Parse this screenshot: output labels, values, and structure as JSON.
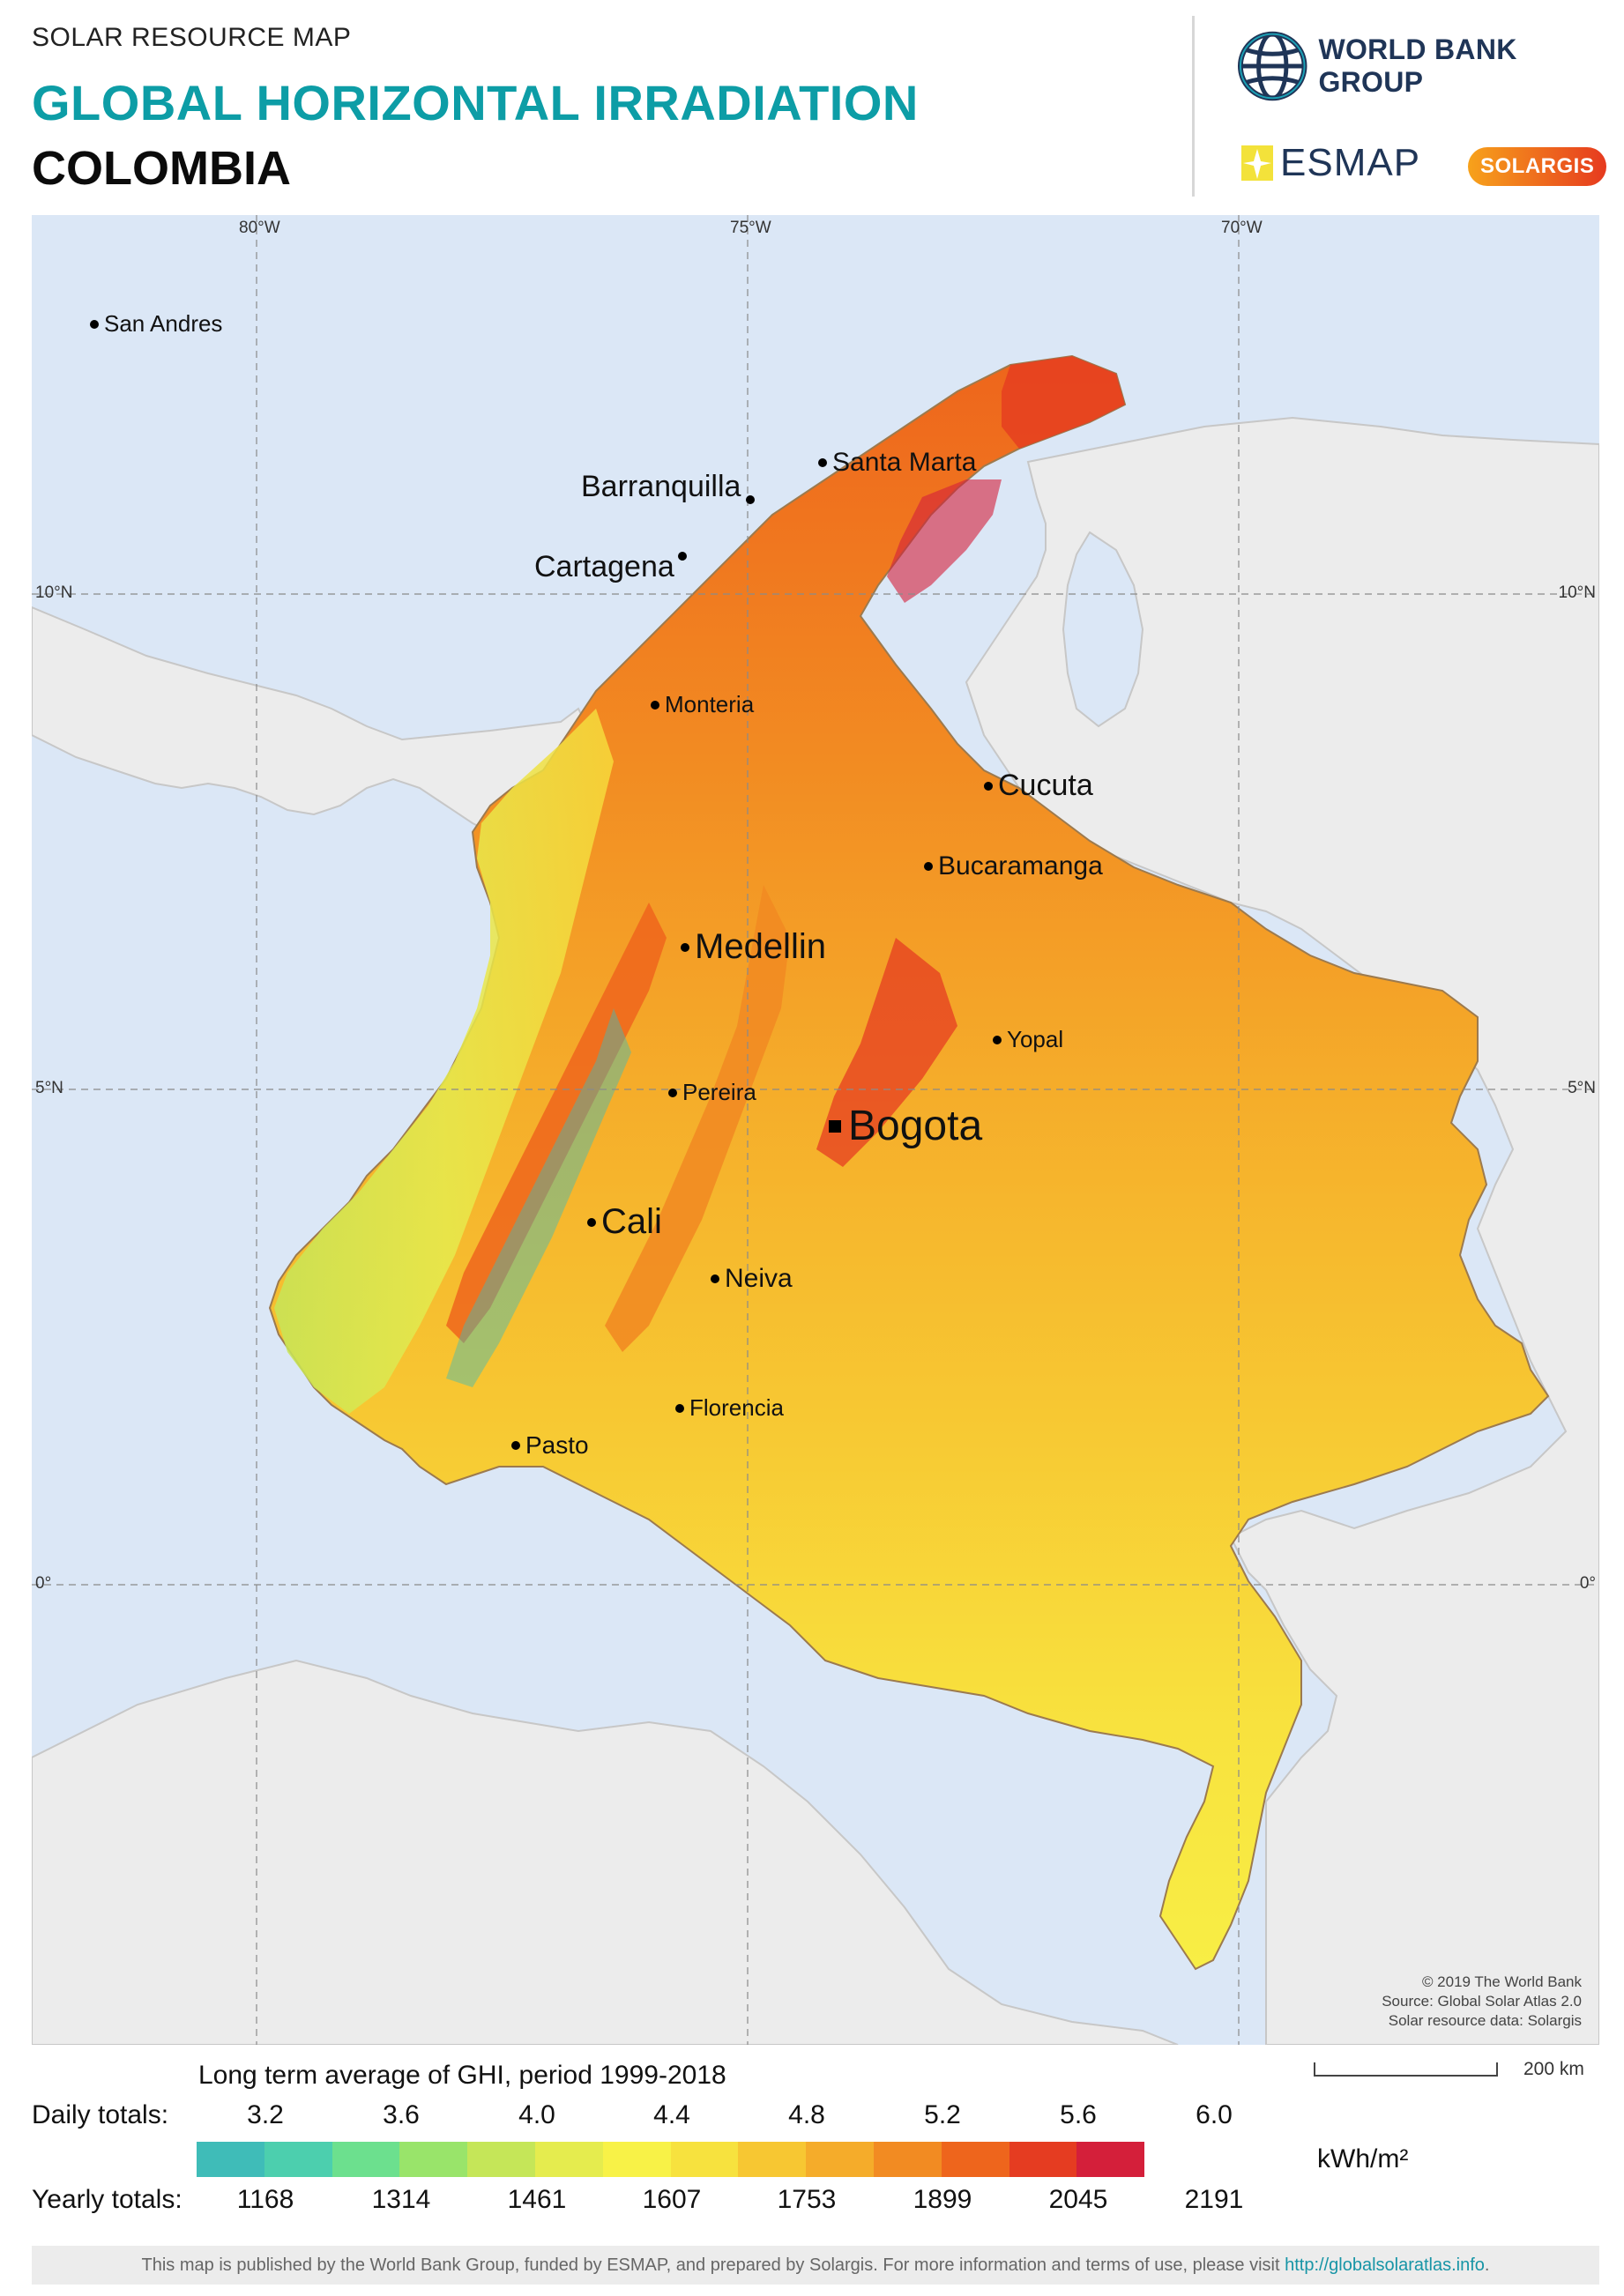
{
  "header": {
    "subtitle": "SOLAR RESOURCE MAP",
    "title": "GLOBAL HORIZONTAL IRRADIATION",
    "country": "COLOMBIA",
    "logos": {
      "world_bank": "WORLD BANK GROUP",
      "esmap": "ESMAP",
      "solargis": "SOLARGIS"
    }
  },
  "map": {
    "longitude_labels": [
      "80°W",
      "75°W",
      "70°W"
    ],
    "latitude_labels": [
      "10°N",
      "5°N",
      "0°"
    ],
    "cities": [
      {
        "name": "San Andres"
      },
      {
        "name": "Santa Marta"
      },
      {
        "name": "Barranquilla"
      },
      {
        "name": "Cartagena"
      },
      {
        "name": "Monteria"
      },
      {
        "name": "Cucuta"
      },
      {
        "name": "Bucaramanga"
      },
      {
        "name": "Medellin"
      },
      {
        "name": "Yopal"
      },
      {
        "name": "Pereira"
      },
      {
        "name": "Bogota"
      },
      {
        "name": "Cali"
      },
      {
        "name": "Neiva"
      },
      {
        "name": "Florencia"
      },
      {
        "name": "Pasto"
      }
    ],
    "credits": [
      "© 2019 The World Bank",
      "Source: Global Solar Atlas 2.0",
      "Solar resource data: Solargis"
    ],
    "scale_label": "200 km",
    "colors": {
      "ocean": "#dbe7f6",
      "land_outside": "#ececec"
    }
  },
  "legend": {
    "title": "Long term average of GHI, period 1999-2018",
    "daily_label": "Daily totals:",
    "daily_ticks": [
      "3.2",
      "3.6",
      "4.0",
      "4.4",
      "4.8",
      "5.2",
      "5.6",
      "6.0"
    ],
    "yearly_label": "Yearly totals:",
    "yearly_ticks": [
      "1168",
      "1314",
      "1461",
      "1607",
      "1753",
      "1899",
      "2045",
      "2191"
    ],
    "unit": "kWh/m²",
    "colors": [
      "#3fbcb8",
      "#4ccfae",
      "#6ce08e",
      "#99e46a",
      "#c5e658",
      "#e5ec4e",
      "#f8f247",
      "#f7e23e",
      "#f7c732",
      "#f5ac2a",
      "#f28b22",
      "#ee651c",
      "#e53c21",
      "#d41f3a"
    ]
  },
  "footer": {
    "text": "This map is published by the World Bank Group, funded by ESMAP, and prepared by Solargis. For more information and terms of use, please visit ",
    "link": "http://globalsolaratlas.info",
    "end": "."
  }
}
